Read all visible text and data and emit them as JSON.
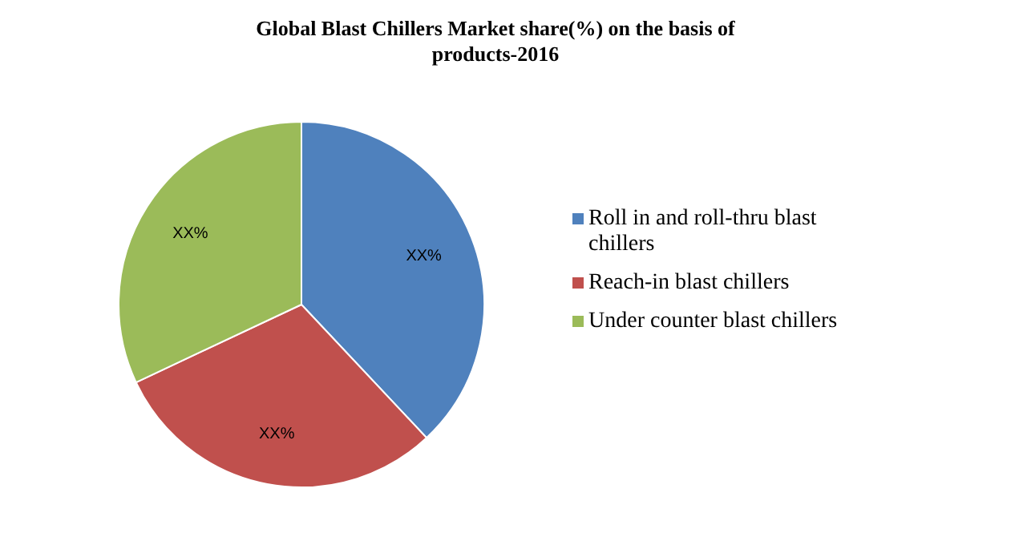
{
  "chart_data": {
    "type": "pie",
    "title": "Global Blast Chillers Market share(%) on the basis of products-2016",
    "categories": [
      "Roll in and roll-thru blast chillers",
      "Reach-in blast chillers",
      "Under counter blast chillers"
    ],
    "values": [
      38,
      30,
      32
    ],
    "colors": [
      "#4f81bd",
      "#c0504d",
      "#9bbb59"
    ],
    "value_labels": [
      "XX%",
      "XX%",
      "XX%"
    ],
    "legend": "right"
  }
}
